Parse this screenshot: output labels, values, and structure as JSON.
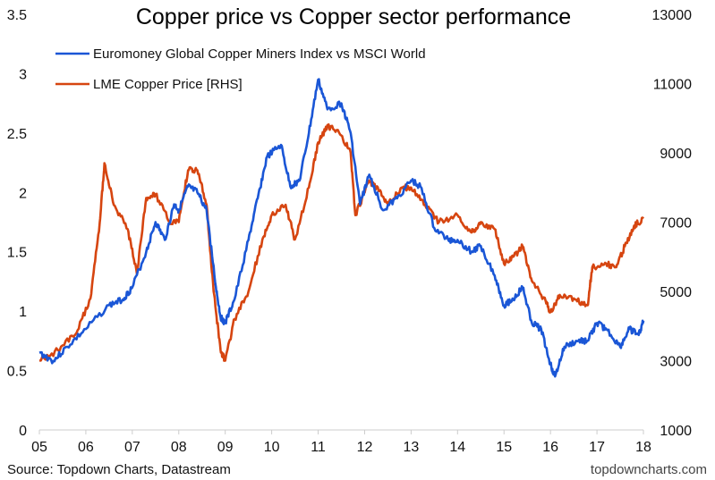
{
  "chart_data": {
    "type": "line",
    "title": "Copper price vs Copper sector performance",
    "source": "Source: Topdown Charts, Datastream",
    "credit": "topdowncharts.com",
    "x_ticks": [
      "05",
      "06",
      "07",
      "08",
      "09",
      "10",
      "11",
      "12",
      "13",
      "14",
      "15",
      "16",
      "17",
      "18"
    ],
    "xlim": [
      2005,
      2018
    ],
    "y_left": {
      "ticks": [
        "0",
        "0.5",
        "1",
        "1.5",
        "2",
        "2.5",
        "3",
        "3.5"
      ],
      "lim": [
        0,
        3.5
      ]
    },
    "y_right": {
      "ticks": [
        "1000",
        "3000",
        "5000",
        "7000",
        "9000",
        "11000",
        "13000"
      ],
      "lim": [
        1000,
        13000
      ]
    },
    "legend_position": "top-left",
    "grid": false,
    "series": [
      {
        "name": "Euromoney Global Copper Miners Index vs MSCI World",
        "axis": "left",
        "color": "#1a56d6",
        "x": [
          2005.0,
          2005.3,
          2005.6,
          2006.0,
          2006.5,
          2006.8,
          2007.0,
          2007.3,
          2007.5,
          2007.7,
          2007.9,
          2008.0,
          2008.2,
          2008.4,
          2008.6,
          2008.8,
          2008.9,
          2009.0,
          2009.2,
          2009.5,
          2009.7,
          2009.9,
          2010.2,
          2010.4,
          2010.6,
          2010.8,
          2011.0,
          2011.2,
          2011.5,
          2011.7,
          2011.9,
          2012.1,
          2012.4,
          2012.7,
          2013.0,
          2013.2,
          2013.5,
          2013.8,
          2014.0,
          2014.3,
          2014.5,
          2014.8,
          2015.0,
          2015.2,
          2015.4,
          2015.6,
          2015.8,
          2016.0,
          2016.1,
          2016.3,
          2016.6,
          2016.8,
          2017.0,
          2017.2,
          2017.5,
          2017.7,
          2017.9,
          2018.0
        ],
        "y": [
          0.65,
          0.58,
          0.7,
          0.85,
          1.05,
          1.1,
          1.2,
          1.5,
          1.75,
          1.6,
          1.9,
          1.85,
          2.05,
          2.0,
          1.85,
          1.2,
          0.95,
          0.9,
          1.1,
          1.6,
          1.95,
          2.3,
          2.4,
          2.05,
          2.1,
          2.5,
          2.95,
          2.7,
          2.75,
          2.5,
          1.9,
          2.15,
          1.85,
          1.95,
          2.1,
          2.05,
          1.7,
          1.6,
          1.6,
          1.5,
          1.55,
          1.3,
          1.05,
          1.1,
          1.2,
          0.9,
          0.85,
          0.55,
          0.45,
          0.7,
          0.75,
          0.75,
          0.9,
          0.85,
          0.7,
          0.85,
          0.8,
          0.92
        ]
      },
      {
        "name": "LME Copper Price [RHS]",
        "axis": "right",
        "color": "#d64510",
        "x": [
          2005.0,
          2005.4,
          2005.8,
          2006.1,
          2006.3,
          2006.4,
          2006.6,
          2006.9,
          2007.1,
          2007.3,
          2007.5,
          2007.8,
          2008.0,
          2008.2,
          2008.4,
          2008.6,
          2008.75,
          2008.9,
          2009.0,
          2009.2,
          2009.5,
          2009.8,
          2010.0,
          2010.3,
          2010.5,
          2010.8,
          2011.0,
          2011.2,
          2011.5,
          2011.7,
          2011.8,
          2012.1,
          2012.3,
          2012.5,
          2012.8,
          2013.0,
          2013.3,
          2013.6,
          2014.0,
          2014.3,
          2014.5,
          2014.8,
          2015.0,
          2015.2,
          2015.4,
          2015.6,
          2015.9,
          2016.0,
          2016.2,
          2016.5,
          2016.8,
          2016.9,
          2017.2,
          2017.4,
          2017.6,
          2017.8,
          2018.0
        ],
        "y": [
          3000,
          3300,
          3800,
          4800,
          7000,
          8700,
          7500,
          6800,
          5500,
          7700,
          7800,
          7000,
          7000,
          8500,
          8500,
          7500,
          5000,
          3300,
          3000,
          4200,
          5000,
          6500,
          7200,
          7500,
          6500,
          8000,
          9300,
          9800,
          9500,
          9000,
          7200,
          8200,
          7900,
          7500,
          8000,
          8000,
          7500,
          7000,
          7200,
          6700,
          7000,
          6800,
          5800,
          6000,
          6300,
          5300,
          4700,
          4400,
          4900,
          4800,
          4600,
          5700,
          5800,
          5700,
          6300,
          6900,
          7100
        ]
      }
    ]
  }
}
